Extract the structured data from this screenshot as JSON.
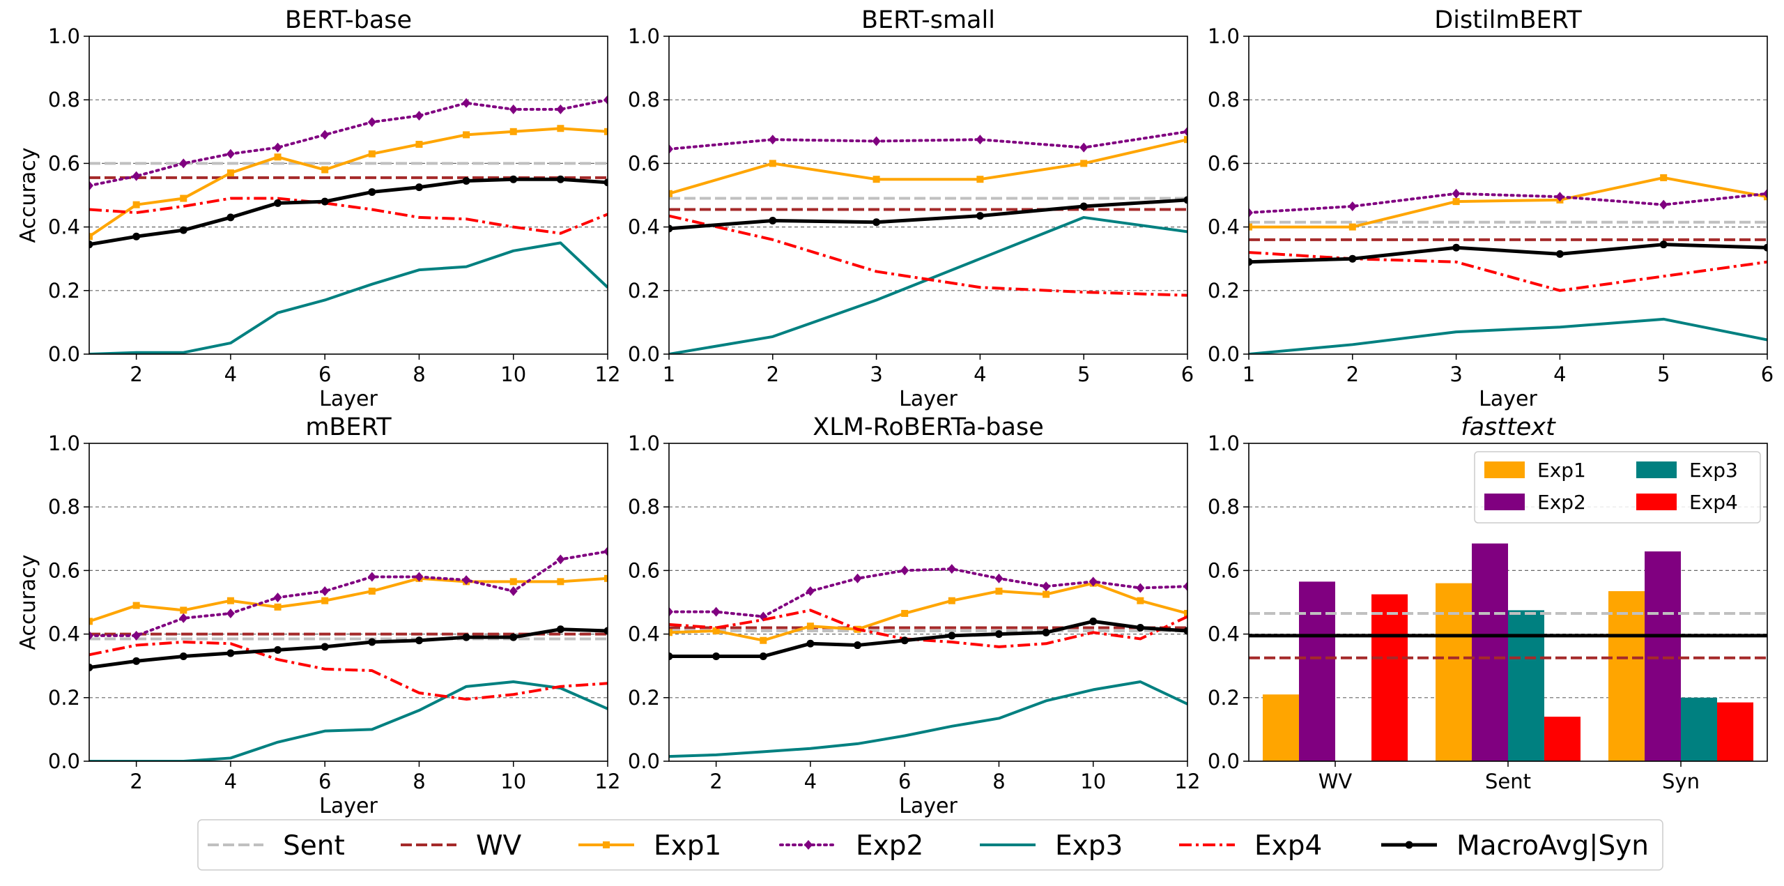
{
  "chart_data": [
    {
      "type": "line",
      "title": "BERT-base",
      "xlabel": "Layer",
      "ylabel": "Accuracy",
      "xlim": [
        1,
        12
      ],
      "ylim": [
        0,
        1
      ],
      "x_ticks": [
        "2",
        "4",
        "6",
        "8",
        "10",
        "12"
      ],
      "y_ticks": [
        "0.0",
        "0.2",
        "0.4",
        "0.6",
        "0.8",
        "1.0"
      ],
      "x": [
        1,
        2,
        3,
        4,
        5,
        6,
        7,
        8,
        9,
        10,
        11,
        12
      ],
      "baselines": [
        {
          "name": "Sent",
          "value": 0.6
        },
        {
          "name": "WV",
          "value": 0.555
        }
      ],
      "series": [
        {
          "name": "Exp1",
          "values": [
            0.37,
            0.47,
            0.49,
            0.57,
            0.62,
            0.58,
            0.63,
            0.66,
            0.69,
            0.7,
            0.71,
            0.7
          ]
        },
        {
          "name": "Exp2",
          "values": [
            0.53,
            0.56,
            0.6,
            0.63,
            0.65,
            0.69,
            0.73,
            0.75,
            0.79,
            0.77,
            0.77,
            0.8
          ]
        },
        {
          "name": "Exp3",
          "values": [
            0.0,
            0.005,
            0.005,
            0.035,
            0.13,
            0.17,
            0.22,
            0.265,
            0.275,
            0.325,
            0.35,
            0.21
          ]
        },
        {
          "name": "Exp4",
          "values": [
            0.455,
            0.445,
            0.465,
            0.49,
            0.49,
            0.475,
            0.455,
            0.43,
            0.425,
            0.4,
            0.38,
            0.44
          ]
        },
        {
          "name": "MacroAvg|Syn",
          "values": [
            0.345,
            0.37,
            0.39,
            0.43,
            0.475,
            0.48,
            0.51,
            0.525,
            0.545,
            0.55,
            0.55,
            0.54
          ]
        }
      ]
    },
    {
      "type": "line",
      "title": "BERT-small",
      "xlabel": "Layer",
      "ylabel": "",
      "xlim": [
        1,
        6
      ],
      "ylim": [
        0,
        1
      ],
      "x_ticks": [
        "1",
        "2",
        "3",
        "4",
        "5",
        "6"
      ],
      "y_ticks": [
        "0.0",
        "0.2",
        "0.4",
        "0.6",
        "0.8",
        "1.0"
      ],
      "x": [
        1,
        2,
        3,
        4,
        5,
        6
      ],
      "baselines": [
        {
          "name": "Sent",
          "value": 0.49
        },
        {
          "name": "WV",
          "value": 0.455
        }
      ],
      "series": [
        {
          "name": "Exp1",
          "values": [
            0.505,
            0.6,
            0.55,
            0.55,
            0.6,
            0.675
          ]
        },
        {
          "name": "Exp2",
          "values": [
            0.645,
            0.675,
            0.67,
            0.675,
            0.65,
            0.7
          ]
        },
        {
          "name": "Exp3",
          "values": [
            0.0,
            0.055,
            0.17,
            0.3,
            0.43,
            0.385
          ]
        },
        {
          "name": "Exp4",
          "values": [
            0.435,
            0.36,
            0.26,
            0.21,
            0.195,
            0.185
          ]
        },
        {
          "name": "MacroAvg|Syn",
          "values": [
            0.395,
            0.42,
            0.415,
            0.435,
            0.465,
            0.485
          ]
        }
      ]
    },
    {
      "type": "line",
      "title": "DistilmBERT",
      "xlabel": "Layer",
      "ylabel": "",
      "xlim": [
        1,
        6
      ],
      "ylim": [
        0,
        1
      ],
      "x_ticks": [
        "1",
        "2",
        "3",
        "4",
        "5",
        "6"
      ],
      "y_ticks": [
        "0.0",
        "0.2",
        "0.4",
        "0.6",
        "0.8",
        "1.0"
      ],
      "x": [
        1,
        2,
        3,
        4,
        5,
        6
      ],
      "baselines": [
        {
          "name": "Sent",
          "value": 0.415
        },
        {
          "name": "WV",
          "value": 0.36
        }
      ],
      "series": [
        {
          "name": "Exp1",
          "values": [
            0.4,
            0.4,
            0.48,
            0.485,
            0.555,
            0.495
          ]
        },
        {
          "name": "Exp2",
          "values": [
            0.445,
            0.465,
            0.505,
            0.495,
            0.47,
            0.505
          ]
        },
        {
          "name": "Exp3",
          "values": [
            0.0,
            0.03,
            0.07,
            0.085,
            0.11,
            0.045
          ]
        },
        {
          "name": "Exp4",
          "values": [
            0.32,
            0.3,
            0.29,
            0.2,
            0.245,
            0.29
          ]
        },
        {
          "name": "MacroAvg|Syn",
          "values": [
            0.29,
            0.3,
            0.335,
            0.315,
            0.345,
            0.335
          ]
        }
      ]
    },
    {
      "type": "line",
      "title": "mBERT",
      "xlabel": "Layer",
      "ylabel": "Accuracy",
      "xlim": [
        1,
        12
      ],
      "ylim": [
        0,
        1
      ],
      "x_ticks": [
        "2",
        "4",
        "6",
        "8",
        "10",
        "12"
      ],
      "y_ticks": [
        "0.0",
        "0.2",
        "0.4",
        "0.6",
        "0.8",
        "1.0"
      ],
      "x": [
        1,
        2,
        3,
        4,
        5,
        6,
        7,
        8,
        9,
        10,
        11,
        12
      ],
      "baselines": [
        {
          "name": "Sent",
          "value": 0.385
        },
        {
          "name": "WV",
          "value": 0.4
        }
      ],
      "series": [
        {
          "name": "Exp1",
          "values": [
            0.44,
            0.49,
            0.475,
            0.505,
            0.485,
            0.505,
            0.535,
            0.575,
            0.565,
            0.565,
            0.565,
            0.575
          ]
        },
        {
          "name": "Exp2",
          "values": [
            0.395,
            0.395,
            0.45,
            0.465,
            0.515,
            0.535,
            0.58,
            0.58,
            0.57,
            0.535,
            0.635,
            0.66
          ]
        },
        {
          "name": "Exp3",
          "values": [
            0.0,
            0.0,
            0.0,
            0.01,
            0.06,
            0.095,
            0.1,
            0.16,
            0.235,
            0.25,
            0.23,
            0.165
          ]
        },
        {
          "name": "Exp4",
          "values": [
            0.335,
            0.365,
            0.375,
            0.37,
            0.32,
            0.29,
            0.285,
            0.215,
            0.195,
            0.21,
            0.235,
            0.245
          ]
        },
        {
          "name": "MacroAvg|Syn",
          "values": [
            0.295,
            0.315,
            0.33,
            0.34,
            0.35,
            0.36,
            0.375,
            0.38,
            0.39,
            0.39,
            0.415,
            0.41
          ]
        }
      ]
    },
    {
      "type": "line",
      "title": "XLM-RoBERTa-base",
      "xlabel": "Layer",
      "ylabel": "",
      "xlim": [
        1,
        12
      ],
      "ylim": [
        0,
        1
      ],
      "x_ticks": [
        "2",
        "4",
        "6",
        "8",
        "10",
        "12"
      ],
      "y_ticks": [
        "0.0",
        "0.2",
        "0.4",
        "0.6",
        "0.8",
        "1.0"
      ],
      "x": [
        1,
        2,
        3,
        4,
        5,
        6,
        7,
        8,
        9,
        10,
        11,
        12
      ],
      "baselines": [
        {
          "name": "Sent",
          "value": 0.41
        },
        {
          "name": "WV",
          "value": 0.42
        }
      ],
      "series": [
        {
          "name": "Exp1",
          "values": [
            0.405,
            0.41,
            0.38,
            0.425,
            0.415,
            0.465,
            0.505,
            0.535,
            0.525,
            0.56,
            0.505,
            0.465
          ]
        },
        {
          "name": "Exp2",
          "values": [
            0.47,
            0.47,
            0.455,
            0.535,
            0.575,
            0.6,
            0.605,
            0.575,
            0.55,
            0.565,
            0.545,
            0.55
          ]
        },
        {
          "name": "Exp3",
          "values": [
            0.015,
            0.02,
            0.03,
            0.04,
            0.055,
            0.08,
            0.11,
            0.135,
            0.19,
            0.225,
            0.25,
            0.18
          ]
        },
        {
          "name": "Exp4",
          "values": [
            0.43,
            0.42,
            0.445,
            0.475,
            0.415,
            0.385,
            0.375,
            0.36,
            0.37,
            0.405,
            0.385,
            0.455
          ]
        },
        {
          "name": "MacroAvg|Syn",
          "values": [
            0.33,
            0.33,
            0.33,
            0.37,
            0.365,
            0.38,
            0.395,
            0.4,
            0.405,
            0.44,
            0.42,
            0.41
          ]
        }
      ]
    },
    {
      "type": "bar",
      "title": "fasttext",
      "xlabel": "",
      "ylabel": "",
      "ylim": [
        0,
        1
      ],
      "y_ticks": [
        "0.0",
        "0.2",
        "0.4",
        "0.6",
        "0.8",
        "1.0"
      ],
      "categories": [
        "WV",
        "Sent",
        "Syn"
      ],
      "baselines": [
        {
          "name": "Sent",
          "value": 0.465
        },
        {
          "name": "WV",
          "value": 0.325
        },
        {
          "name": "MacroAvg|Syn",
          "value": 0.395
        }
      ],
      "series": [
        {
          "name": "Exp1",
          "values": [
            0.21,
            0.56,
            0.535
          ]
        },
        {
          "name": "Exp2",
          "values": [
            0.565,
            0.685,
            0.66
          ]
        },
        {
          "name": "Exp3",
          "values": [
            0.0,
            0.475,
            0.2
          ]
        },
        {
          "name": "Exp4",
          "values": [
            0.525,
            0.14,
            0.185
          ]
        }
      ],
      "legend": [
        "Exp1",
        "Exp2",
        "Exp3",
        "Exp4"
      ],
      "legend_position": "top-right"
    }
  ],
  "legend": [
    {
      "name": "Sent",
      "color": "#c0c0c0",
      "dash": "dashed"
    },
    {
      "name": "WV",
      "color": "#a52a2a",
      "dash": "dashed"
    },
    {
      "name": "Exp1",
      "color": "#ffa500",
      "dash": "solid",
      "marker": "square"
    },
    {
      "name": "Exp2",
      "color": "#800080",
      "dash": "dotted",
      "marker": "diamond"
    },
    {
      "name": "Exp3",
      "color": "#008080",
      "dash": "solid"
    },
    {
      "name": "Exp4",
      "color": "#ff0000",
      "dash": "dashdot"
    },
    {
      "name": "MacroAvg|Syn",
      "color": "#000000",
      "dash": "solid",
      "marker": "circle"
    }
  ]
}
